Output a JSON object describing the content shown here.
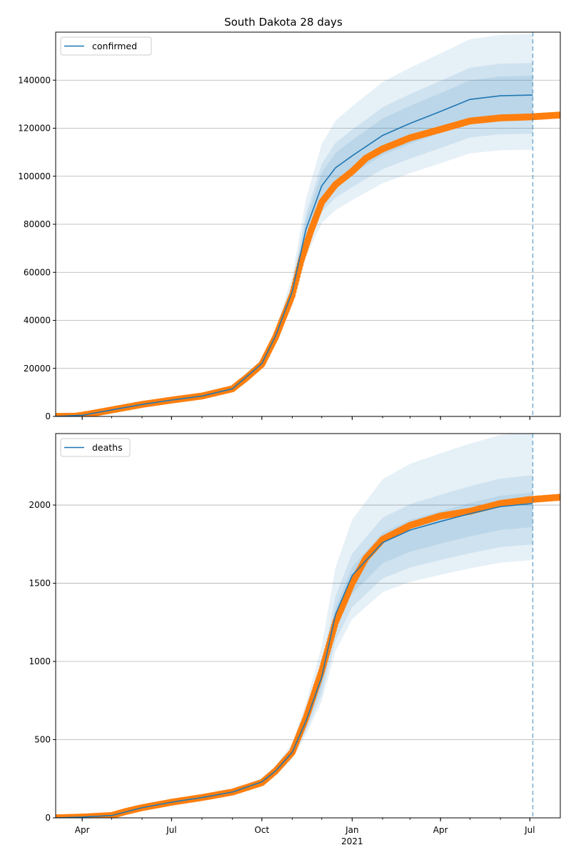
{
  "chart_data": {
    "type": "line",
    "title": "South Dakota 28 days",
    "x_range": [
      "2020-03-05",
      "2021-08-01"
    ],
    "x_ticks": [
      {
        "date": "2020-04-01",
        "label": "Apr"
      },
      {
        "date": "2020-07-01",
        "label": "Jul"
      },
      {
        "date": "2020-10-01",
        "label": "Oct"
      },
      {
        "date": "2021-01-01",
        "label": "Jan",
        "sublabel": "2021"
      },
      {
        "date": "2021-04-01",
        "label": "Apr"
      },
      {
        "date": "2021-07-01",
        "label": "Jul"
      }
    ],
    "forecast_date": "2021-07-04",
    "colors": {
      "model": "#1f77b4",
      "observed": "#ff7f0e",
      "band": "#1f77b4",
      "grid": "#b0b0b0"
    },
    "panels": [
      {
        "legend": "confirmed",
        "legend_position": "top-left",
        "ylim": [
          0,
          160000
        ],
        "y_ticks": [
          "0",
          "20000",
          "40000",
          "60000",
          "80000",
          "100000",
          "120000",
          "140000"
        ],
        "grid": true,
        "observed": {
          "dates": [
            "2020-03-05",
            "2020-03-25",
            "2020-04-01",
            "2020-04-15",
            "2020-05-01",
            "2020-06-01",
            "2020-07-01",
            "2020-08-01",
            "2020-09-01",
            "2020-09-15",
            "2020-10-01",
            "2020-10-15",
            "2020-11-01",
            "2020-11-10",
            "2020-11-20",
            "2020-12-01",
            "2020-12-15",
            "2021-01-01",
            "2021-01-15",
            "2021-02-01",
            "2021-03-01",
            "2021-04-01",
            "2021-05-01",
            "2021-06-01",
            "2021-07-01",
            "2021-08-01"
          ],
          "values": [
            0,
            100,
            500,
            1500,
            2700,
            5000,
            6800,
            8500,
            11500,
            16000,
            21700,
            33000,
            50500,
            64800,
            77300,
            89200,
            96500,
            102000,
            107500,
            111400,
            116000,
            119500,
            123000,
            124300,
            124700,
            125500
          ]
        },
        "model": {
          "dates": [
            "2020-03-05",
            "2020-04-01",
            "2020-05-01",
            "2020-06-01",
            "2020-07-01",
            "2020-08-01",
            "2020-09-01",
            "2020-10-01",
            "2020-10-15",
            "2020-11-01",
            "2020-11-15",
            "2020-12-01",
            "2020-12-15",
            "2021-01-01",
            "2021-02-01",
            "2021-03-01",
            "2021-04-01",
            "2021-05-01",
            "2021-06-01",
            "2021-07-04"
          ],
          "values": [
            0,
            500,
            2700,
            5000,
            6800,
            8500,
            11500,
            22000,
            33500,
            52000,
            78000,
            96000,
            103500,
            108500,
            117000,
            122000,
            127000,
            132000,
            133500,
            133800
          ],
          "band_spread": [
            0,
            0.02,
            0.05,
            0.08,
            0.1,
            0.12,
            0.15,
            0.3,
            0.45,
            0.65,
            0.85,
            0.95,
            1,
            1,
            1,
            1,
            1,
            1,
            1,
            1
          ]
        },
        "bands": [
          {
            "level": "outer",
            "lower_factor": 0.83,
            "upper_factor": 1.19
          },
          {
            "level": "middle",
            "lower_factor": 0.88,
            "upper_factor": 1.1
          },
          {
            "level": "inner",
            "lower_factor": 0.93,
            "upper_factor": 1.06
          }
        ]
      },
      {
        "legend": "deaths",
        "legend_position": "top-left",
        "ylim": [
          0,
          2457
        ],
        "y_ticks": [
          "0",
          "500",
          "1000",
          "1500",
          "2000"
        ],
        "grid": true,
        "observed": {
          "dates": [
            "2020-03-05",
            "2020-04-01",
            "2020-05-01",
            "2020-05-15",
            "2020-06-01",
            "2020-07-01",
            "2020-08-01",
            "2020-09-01",
            "2020-10-01",
            "2020-10-15",
            "2020-11-01",
            "2020-11-15",
            "2020-12-01",
            "2020-12-15",
            "2021-01-01",
            "2021-01-15",
            "2021-02-01",
            "2021-03-01",
            "2021-04-01",
            "2021-05-01",
            "2021-06-01",
            "2021-07-01",
            "2021-08-01"
          ],
          "values": [
            0,
            5,
            15,
            40,
            65,
            100,
            130,
            165,
            225,
            300,
            420,
            640,
            940,
            1250,
            1500,
            1660,
            1780,
            1870,
            1930,
            1960,
            2010,
            2035,
            2050
          ]
        },
        "model": {
          "dates": [
            "2020-03-05",
            "2020-04-01",
            "2020-05-01",
            "2020-06-01",
            "2020-07-01",
            "2020-08-01",
            "2020-09-01",
            "2020-10-01",
            "2020-10-15",
            "2020-11-01",
            "2020-11-15",
            "2020-12-01",
            "2020-12-15",
            "2021-01-01",
            "2021-02-01",
            "2021-03-01",
            "2021-04-01",
            "2021-05-01",
            "2021-06-01",
            "2021-07-04"
          ],
          "values": [
            0,
            5,
            15,
            65,
            100,
            130,
            165,
            230,
            300,
            420,
            620,
            900,
            1300,
            1550,
            1760,
            1840,
            1895,
            1945,
            1990,
            2010
          ],
          "band_spread": [
            0,
            0.1,
            0.2,
            0.25,
            0.3,
            0.35,
            0.4,
            0.45,
            0.5,
            0.6,
            0.8,
            0.95,
            1,
            1,
            1,
            1,
            1,
            1,
            1,
            1
          ]
        },
        "bands": [
          {
            "level": "outer",
            "lower_factor": 0.82,
            "upper_factor": 1.23
          },
          {
            "level": "middle",
            "lower_factor": 0.87,
            "upper_factor": 1.09
          },
          {
            "level": "inner",
            "lower_factor": 0.925,
            "upper_factor": 1.035
          }
        ]
      }
    ]
  }
}
